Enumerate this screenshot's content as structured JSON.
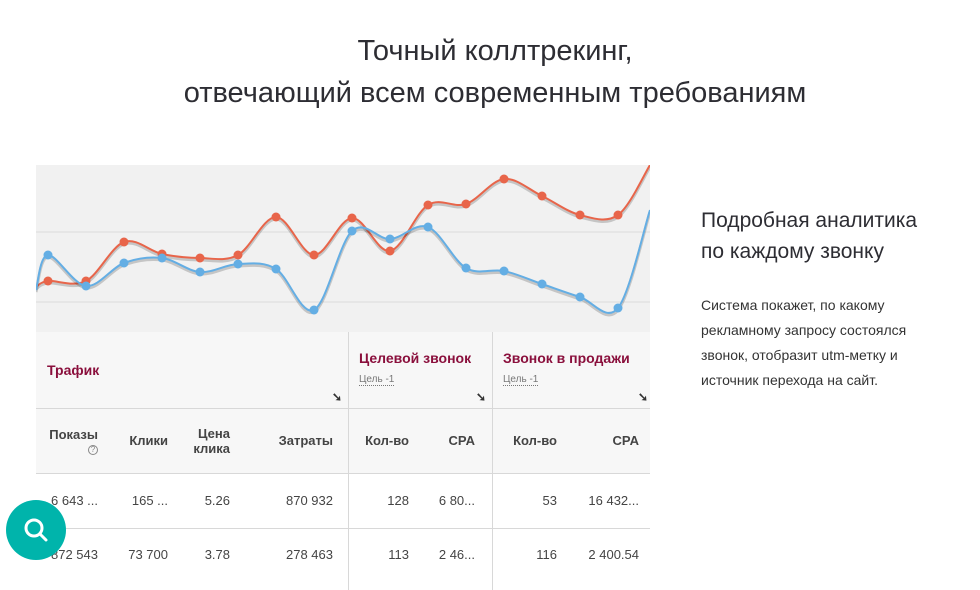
{
  "header": {
    "title_line1": "Точный коллтрекинг,",
    "title_line2": "отвечающий всем современным требованиям"
  },
  "chart_data": {
    "type": "line",
    "series": [
      {
        "color": "#e8654a",
        "values": [
          43,
          49,
          49,
          88,
          76,
          72,
          75,
          113,
          75,
          112,
          79,
          125,
          126,
          151,
          134,
          115,
          115,
          165
        ]
      },
      {
        "color": "#64aee4",
        "values": [
          40,
          75,
          44,
          67,
          72,
          58,
          66,
          61,
          20,
          99,
          91,
          103,
          62,
          59,
          46,
          33,
          22,
          120
        ]
      }
    ],
    "grid": true
  },
  "table": {
    "groups": [
      {
        "label": "Трафик"
      },
      {
        "label": "Целевой звонок",
        "goal": "Цель -1"
      },
      {
        "label": "Звонок в продажи",
        "goal": "Цель -1"
      }
    ],
    "sort_icon": "arrow-down-right-icon",
    "columns": [
      "Показы",
      "Клики",
      "Цена клика",
      "Затраты",
      "Кол-во",
      "CPA",
      "Кол-во",
      "CPA"
    ],
    "help_icon": "question-circle-icon",
    "rows": [
      [
        "6 643 ...",
        "165 ...",
        "5.26",
        "870 932",
        "128",
        "6 80...",
        "53",
        "16 432..."
      ],
      [
        "872 543",
        "73 700",
        "3.78",
        "278 463",
        "113",
        "2 46...",
        "116",
        "2 400.54"
      ]
    ]
  },
  "side": {
    "heading_line1": "Подробная аналитика",
    "heading_line2": "по каждому звонку",
    "text": "Система покажет, по какому рекламному запросу состоялся звонок, отобразит utm-метку и источник перехода на сайт."
  },
  "fab": {
    "icon": "search-icon",
    "color": "#00b4ab"
  }
}
